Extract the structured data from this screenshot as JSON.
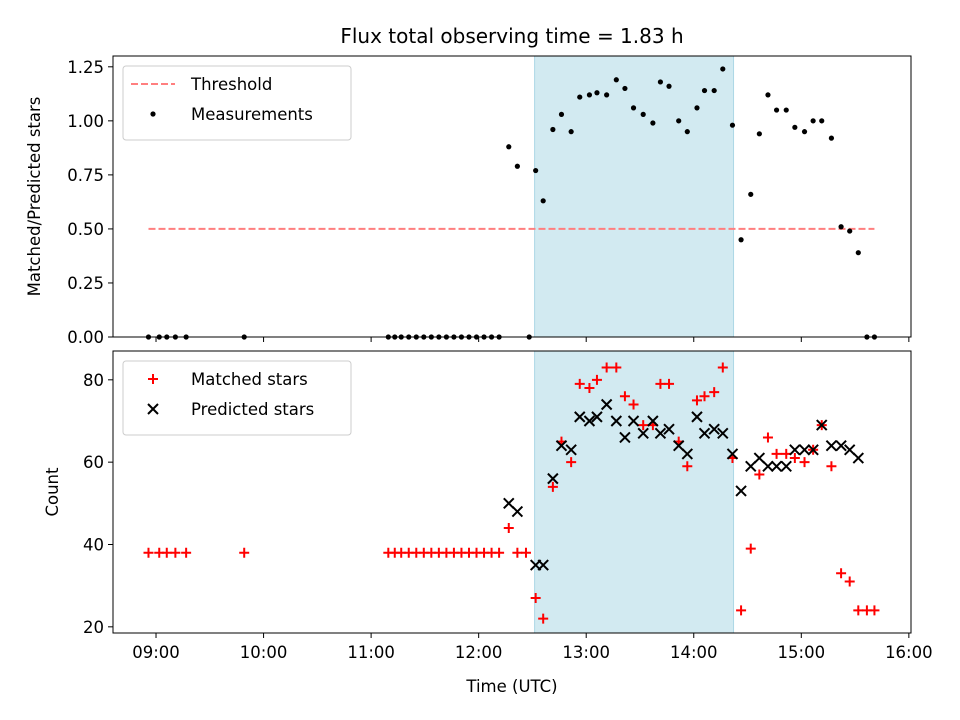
{
  "chart_data": {
    "title": "Flux total observing time = 1.83 h",
    "xlabel": "Time (UTC)",
    "xlim": [
      8.6,
      16.02
    ],
    "xticks": [
      {
        "value": 9,
        "label": "09:00"
      },
      {
        "value": 10,
        "label": "10:00"
      },
      {
        "value": 11,
        "label": "11:00"
      },
      {
        "value": 12,
        "label": "12:00"
      },
      {
        "value": 13,
        "label": "13:00"
      },
      {
        "value": 14,
        "label": "14:00"
      },
      {
        "value": 15,
        "label": "15:00"
      },
      {
        "value": 16,
        "label": "16:00"
      }
    ],
    "shaded_span": [
      12.52,
      14.37
    ],
    "shade_color": "#add8e6",
    "panels": [
      {
        "type": "scatter",
        "ylabel": "Matched/Predicted stars",
        "ylim": [
          0,
          1.3
        ],
        "yticks": [
          {
            "value": 0.0,
            "label": "0.00"
          },
          {
            "value": 0.25,
            "label": "0.25"
          },
          {
            "value": 0.5,
            "label": "0.50"
          },
          {
            "value": 0.75,
            "label": "0.75"
          },
          {
            "value": 1.0,
            "label": "1.00"
          },
          {
            "value": 1.25,
            "label": "1.25"
          }
        ],
        "threshold": {
          "name": "Threshold",
          "value": 0.5,
          "x_range": [
            8.93,
            15.68
          ],
          "color": "#ff7f7f"
        },
        "legend_position": "upper-left",
        "series": [
          {
            "name": "Measurements",
            "marker": "dot",
            "color": "#000000",
            "points": [
              [
                8.93,
                0.0
              ],
              [
                9.03,
                0.0
              ],
              [
                9.1,
                0.0
              ],
              [
                9.18,
                0.0
              ],
              [
                9.28,
                0.0
              ],
              [
                9.82,
                0.0
              ],
              [
                11.16,
                0.0
              ],
              [
                11.22,
                0.0
              ],
              [
                11.28,
                0.0
              ],
              [
                11.35,
                0.0
              ],
              [
                11.42,
                0.0
              ],
              [
                11.49,
                0.0
              ],
              [
                11.56,
                0.0
              ],
              [
                11.63,
                0.0
              ],
              [
                11.7,
                0.0
              ],
              [
                11.77,
                0.0
              ],
              [
                11.84,
                0.0
              ],
              [
                11.91,
                0.0
              ],
              [
                11.98,
                0.0
              ],
              [
                12.05,
                0.0
              ],
              [
                12.12,
                0.0
              ],
              [
                12.19,
                0.0
              ],
              [
                12.28,
                0.88
              ],
              [
                12.36,
                0.79
              ],
              [
                12.47,
                0.0
              ],
              [
                12.53,
                0.77
              ],
              [
                12.6,
                0.63
              ],
              [
                12.69,
                0.96
              ],
              [
                12.77,
                1.03
              ],
              [
                12.86,
                0.95
              ],
              [
                12.94,
                1.11
              ],
              [
                13.03,
                1.12
              ],
              [
                13.1,
                1.13
              ],
              [
                13.19,
                1.12
              ],
              [
                13.28,
                1.19
              ],
              [
                13.36,
                1.15
              ],
              [
                13.44,
                1.06
              ],
              [
                13.53,
                1.03
              ],
              [
                13.62,
                0.99
              ],
              [
                13.69,
                1.18
              ],
              [
                13.77,
                1.16
              ],
              [
                13.86,
                1.0
              ],
              [
                13.94,
                0.95
              ],
              [
                14.03,
                1.06
              ],
              [
                14.1,
                1.14
              ],
              [
                14.19,
                1.14
              ],
              [
                14.27,
                1.24
              ],
              [
                14.36,
                0.98
              ],
              [
                14.44,
                0.45
              ],
              [
                14.53,
                0.66
              ],
              [
                14.61,
                0.94
              ],
              [
                14.69,
                1.12
              ],
              [
                14.77,
                1.05
              ],
              [
                14.86,
                1.05
              ],
              [
                14.94,
                0.97
              ],
              [
                15.03,
                0.95
              ],
              [
                15.11,
                1.0
              ],
              [
                15.19,
                1.0
              ],
              [
                15.28,
                0.92
              ],
              [
                15.37,
                0.51
              ],
              [
                15.45,
                0.49
              ],
              [
                15.53,
                0.39
              ],
              [
                15.61,
                0.0
              ],
              [
                15.68,
                0.0
              ]
            ]
          }
        ]
      },
      {
        "type": "scatter",
        "ylabel": "Count",
        "ylim": [
          18.5,
          87
        ],
        "yticks": [
          {
            "value": 20,
            "label": "20"
          },
          {
            "value": 40,
            "label": "40"
          },
          {
            "value": 60,
            "label": "60"
          },
          {
            "value": 80,
            "label": "80"
          }
        ],
        "legend_position": "upper-left",
        "series": [
          {
            "name": "Matched stars",
            "marker": "plus",
            "color": "#ff0000",
            "points": [
              [
                8.93,
                38
              ],
              [
                9.03,
                38
              ],
              [
                9.1,
                38
              ],
              [
                9.18,
                38
              ],
              [
                9.28,
                38
              ],
              [
                9.82,
                38
              ],
              [
                11.16,
                38
              ],
              [
                11.22,
                38
              ],
              [
                11.28,
                38
              ],
              [
                11.35,
                38
              ],
              [
                11.42,
                38
              ],
              [
                11.49,
                38
              ],
              [
                11.56,
                38
              ],
              [
                11.63,
                38
              ],
              [
                11.7,
                38
              ],
              [
                11.77,
                38
              ],
              [
                11.84,
                38
              ],
              [
                11.91,
                38
              ],
              [
                11.98,
                38
              ],
              [
                12.05,
                38
              ],
              [
                12.12,
                38
              ],
              [
                12.19,
                38
              ],
              [
                12.28,
                44
              ],
              [
                12.36,
                38
              ],
              [
                12.44,
                38
              ],
              [
                12.53,
                27
              ],
              [
                12.6,
                22
              ],
              [
                12.69,
                54
              ],
              [
                12.77,
                65
              ],
              [
                12.86,
                60
              ],
              [
                12.94,
                79
              ],
              [
                13.03,
                78
              ],
              [
                13.1,
                80
              ],
              [
                13.19,
                83
              ],
              [
                13.28,
                83
              ],
              [
                13.36,
                76
              ],
              [
                13.44,
                74
              ],
              [
                13.53,
                69
              ],
              [
                13.62,
                69
              ],
              [
                13.69,
                79
              ],
              [
                13.77,
                79
              ],
              [
                13.86,
                65
              ],
              [
                13.94,
                59
              ],
              [
                14.03,
                75
              ],
              [
                14.1,
                76
              ],
              [
                14.19,
                77
              ],
              [
                14.27,
                83
              ],
              [
                14.36,
                61
              ],
              [
                14.44,
                24
              ],
              [
                14.53,
                39
              ],
              [
                14.61,
                57
              ],
              [
                14.69,
                66
              ],
              [
                14.77,
                62
              ],
              [
                14.86,
                62
              ],
              [
                14.94,
                61
              ],
              [
                15.03,
                60
              ],
              [
                15.11,
                63
              ],
              [
                15.19,
                69
              ],
              [
                15.28,
                59
              ],
              [
                15.37,
                33
              ],
              [
                15.45,
                31
              ],
              [
                15.53,
                24
              ],
              [
                15.61,
                24
              ],
              [
                15.68,
                24
              ]
            ]
          },
          {
            "name": "Predicted stars",
            "marker": "x",
            "color": "#000000",
            "points": [
              [
                12.28,
                50
              ],
              [
                12.36,
                48
              ],
              [
                12.53,
                35
              ],
              [
                12.6,
                35
              ],
              [
                12.69,
                56
              ],
              [
                12.77,
                64
              ],
              [
                12.86,
                63
              ],
              [
                12.94,
                71
              ],
              [
                13.03,
                70
              ],
              [
                13.1,
                71
              ],
              [
                13.19,
                74
              ],
              [
                13.28,
                70
              ],
              [
                13.36,
                66
              ],
              [
                13.44,
                70
              ],
              [
                13.53,
                67
              ],
              [
                13.62,
                70
              ],
              [
                13.69,
                67
              ],
              [
                13.77,
                68
              ],
              [
                13.86,
                64
              ],
              [
                13.94,
                62
              ],
              [
                14.03,
                71
              ],
              [
                14.1,
                67
              ],
              [
                14.19,
                68
              ],
              [
                14.27,
                67
              ],
              [
                14.36,
                62
              ],
              [
                14.44,
                53
              ],
              [
                14.53,
                59
              ],
              [
                14.61,
                61
              ],
              [
                14.69,
                59
              ],
              [
                14.77,
                59
              ],
              [
                14.86,
                59
              ],
              [
                14.94,
                63
              ],
              [
                15.03,
                63
              ],
              [
                15.11,
                63
              ],
              [
                15.19,
                69
              ],
              [
                15.28,
                64
              ],
              [
                15.37,
                64
              ],
              [
                15.45,
                63
              ],
              [
                15.53,
                61
              ]
            ]
          }
        ]
      }
    ]
  }
}
